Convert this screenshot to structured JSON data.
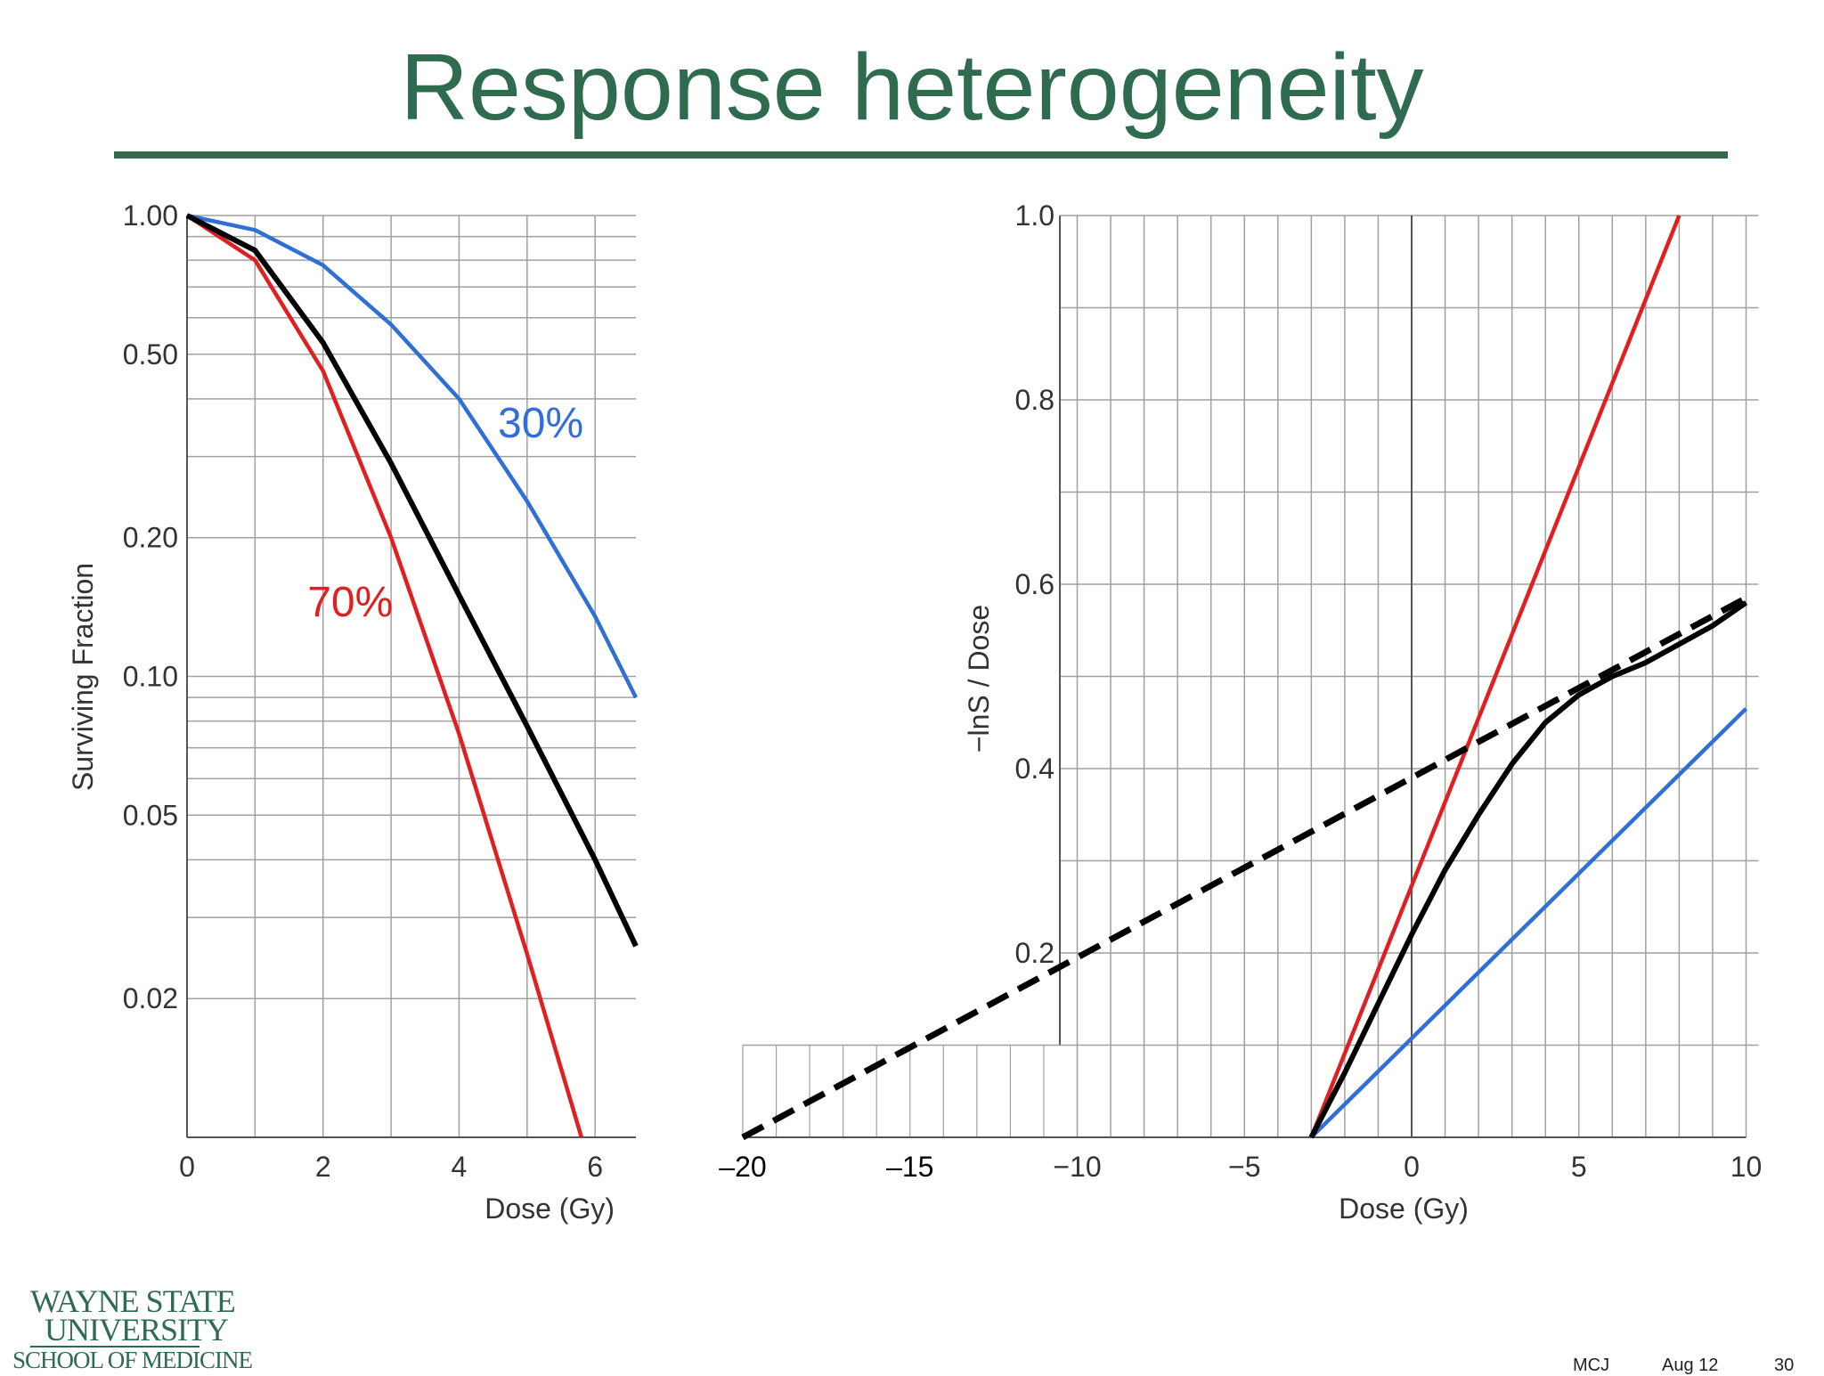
{
  "slide": {
    "title": "Response heterogeneity",
    "logo": {
      "line1": "WAYNE STATE",
      "line2": "UNIVERSITY",
      "line3": "SCHOOL OF MEDICINE"
    },
    "footer": {
      "author": "MCJ",
      "date": "Aug 12",
      "page": "30"
    }
  },
  "colors": {
    "title": "#2e6b4f",
    "red": "#e02020",
    "blue": "#2f6fd6",
    "black": "#000000",
    "grid": "#a0a0a0"
  },
  "chart_data": [
    {
      "type": "line",
      "title": "",
      "xlabel": "Dose  (Gy)",
      "ylabel": "Surviving Fraction",
      "xlim": [
        0,
        6.6
      ],
      "ylim": [
        0.01,
        1.0
      ],
      "yscale": "log",
      "grid": true,
      "x_ticks": [
        0,
        2,
        4,
        6
      ],
      "y_ticks": [
        {
          "value": 1.0,
          "label": "1.00"
        },
        {
          "value": 0.5,
          "label": "0.50"
        },
        {
          "value": 0.2,
          "label": "0.20"
        },
        {
          "value": 0.1,
          "label": "0.10"
        },
        {
          "value": 0.05,
          "label": "0.05"
        },
        {
          "value": 0.02,
          "label": "0.02"
        }
      ],
      "series": [
        {
          "name": "30%",
          "color": "#2f6fd6",
          "x": [
            0,
            1,
            2,
            3,
            4,
            5,
            6,
            6.6
          ],
          "y": [
            1.0,
            0.93,
            0.78,
            0.58,
            0.4,
            0.24,
            0.135,
            0.09
          ]
        },
        {
          "name": "70%",
          "color": "#e02020",
          "x": [
            0,
            1,
            2,
            3,
            4,
            5,
            5.8
          ],
          "y": [
            1.0,
            0.8,
            0.46,
            0.2,
            0.075,
            0.025,
            0.01
          ]
        },
        {
          "name": "",
          "color": "#000000",
          "x": [
            0,
            1,
            2,
            3,
            4,
            5,
            6,
            6.6
          ],
          "y": [
            1.0,
            0.84,
            0.53,
            0.29,
            0.15,
            0.078,
            0.04,
            0.026
          ]
        }
      ],
      "annotations": [
        {
          "text": "30%",
          "color": "#2f6fd6",
          "x": 5.2,
          "y": 0.33
        },
        {
          "text": "70%",
          "color": "#e02020",
          "x": 2.4,
          "y": 0.135
        }
      ]
    },
    {
      "type": "line",
      "title": "",
      "xlabel": "Dose  (Gy)",
      "ylabel": "−lnS / Dose",
      "xlim": [
        -20,
        10
      ],
      "ylim": [
        0,
        1.0
      ],
      "grid": true,
      "x_ticks": [
        {
          "value": -20,
          "label": "–20"
        },
        {
          "value": -15,
          "label": "–15"
        },
        {
          "value": -10,
          "label": "−10"
        },
        {
          "value": -5,
          "label": "−5"
        },
        {
          "value": 0,
          "label": "0"
        },
        {
          "value": 5,
          "label": "5"
        },
        {
          "value": 10,
          "label": "10"
        }
      ],
      "y_ticks": [
        {
          "value": 1.0,
          "label": "1.0"
        },
        {
          "value": 0.8,
          "label": "0.8"
        },
        {
          "value": 0.6,
          "label": "0.6"
        },
        {
          "value": 0.4,
          "label": "0.4"
        },
        {
          "value": 0.2,
          "label": "0.2"
        }
      ],
      "series": [
        {
          "name": "",
          "color": "#e02020",
          "style": "solid",
          "x": [
            -3,
            8
          ],
          "y": [
            0,
            1.0
          ]
        },
        {
          "name": "",
          "color": "#2f6fd6",
          "style": "solid",
          "x": [
            -3,
            10
          ],
          "y": [
            0,
            0.465
          ]
        },
        {
          "name": "",
          "color": "#000000",
          "style": "solid",
          "x": [
            -3,
            -2,
            -1,
            0,
            1,
            2,
            3,
            4,
            5,
            6,
            7,
            8,
            9,
            10
          ],
          "y": [
            0,
            0.07,
            0.145,
            0.22,
            0.29,
            0.35,
            0.405,
            0.45,
            0.48,
            0.5,
            0.515,
            0.535,
            0.555,
            0.58
          ]
        },
        {
          "name": "",
          "color": "#000000",
          "style": "dashed",
          "x": [
            -20,
            10
          ],
          "y": [
            0,
            0.585
          ]
        }
      ]
    }
  ]
}
